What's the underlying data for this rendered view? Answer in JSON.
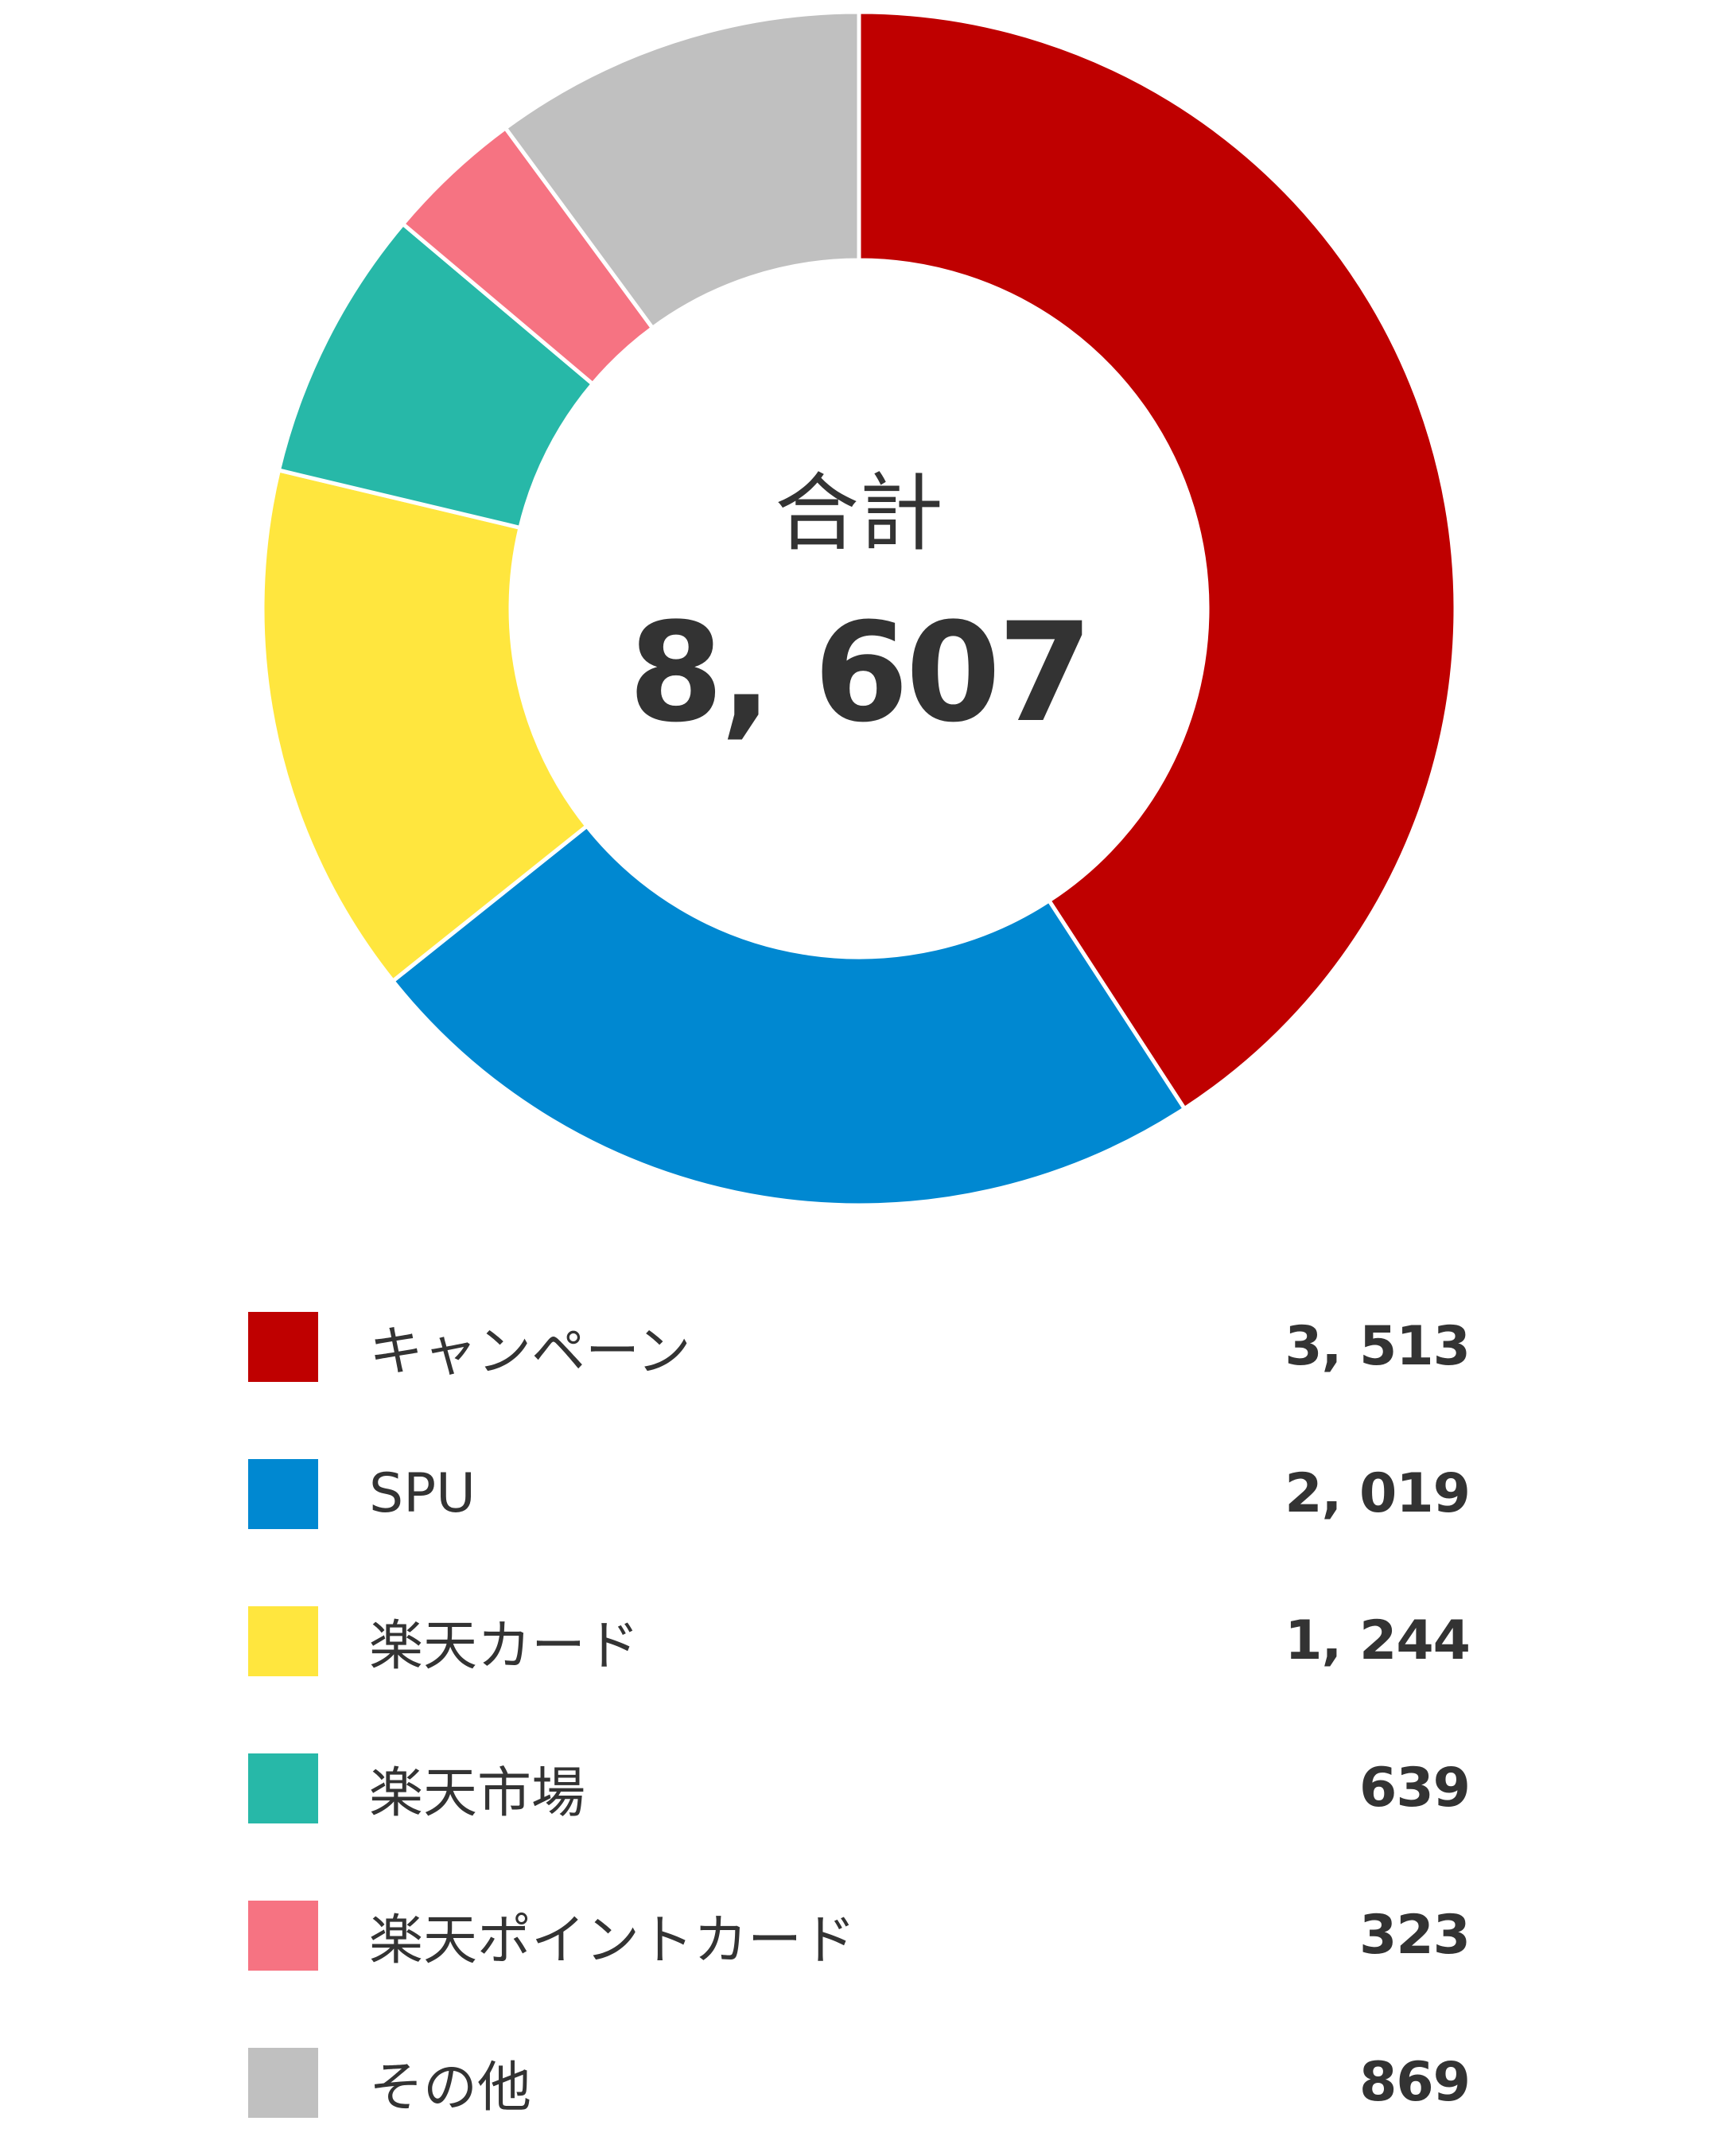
{
  "chart_data": {
    "type": "pie",
    "donut": true,
    "center_label": {
      "title": "合計",
      "total": "8, 607"
    },
    "categories": [
      "キャンペーン",
      "SPU",
      "楽天カード",
      "楽天市場",
      "楽天ポイントカード",
      "その他"
    ],
    "values": [
      3513,
      2019,
      1244,
      639,
      323,
      869
    ],
    "value_labels": [
      "3, 513",
      "2, 019",
      "1, 244",
      "639",
      "323",
      "869"
    ],
    "colors": [
      "#BF0000",
      "#0088D1",
      "#FFE63E",
      "#27B8A8",
      "#F67382",
      "#C0C0C0"
    ],
    "start_angle_deg": 0,
    "direction": "clockwise",
    "legend_position": "bottom"
  }
}
